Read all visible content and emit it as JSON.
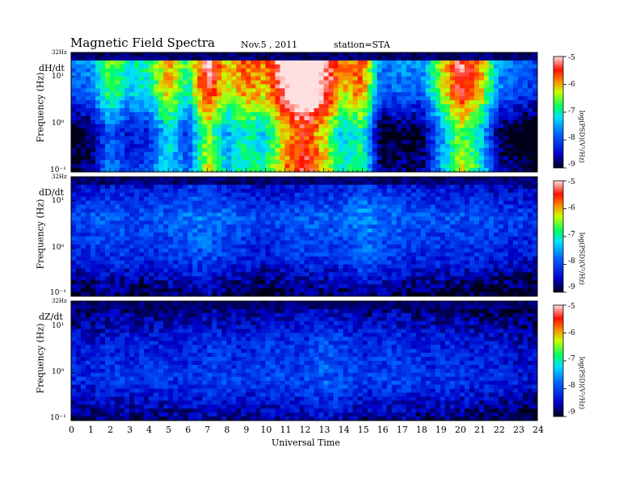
{
  "header": {
    "title": "Magnetic  Field  Spectra",
    "date": "Nov.5  , 2011",
    "station": "station=STA"
  },
  "chart_data": [
    {
      "type": "heatmap",
      "panel_label": "dH/dt",
      "ylabel": "Frequency  (Hz)",
      "y_scale": "log",
      "ylim": [
        0.1,
        32
      ],
      "y_tick_labels": [
        "32Hz",
        "10¹",
        "10⁰",
        "10⁻¹"
      ],
      "xlim": [
        0,
        24
      ],
      "colorbar_label": "log(PSD)(V²/Hz)",
      "colorbar_range": [
        -9,
        -5
      ],
      "colorbar_ticks": [
        "-5",
        "-6",
        "-7",
        "-8",
        "-9"
      ],
      "intensity_profile": [
        -8.6,
        -8.4,
        -7.3,
        -7.9,
        -7.7,
        -6.7,
        -7.6,
        -5.9,
        -7.0,
        -6.5,
        -6.7,
        -5.6,
        -5.0,
        -5.7,
        -6.8,
        -6.4,
        -8.6,
        -8.4,
        -8.5,
        -7.2,
        -6.0,
        -6.6,
        -8.3,
        -8.6,
        -8.8
      ],
      "y_profile": [
        -7.0,
        -7.3,
        -8.6,
        -8.3
      ]
    },
    {
      "type": "heatmap",
      "panel_label": "dD/dt",
      "ylabel": "Frequency  (Hz)",
      "y_scale": "log",
      "ylim": [
        0.1,
        32
      ],
      "y_tick_labels": [
        "32Hz",
        "10¹",
        "10⁰",
        "10⁻¹"
      ],
      "xlim": [
        0,
        24
      ],
      "colorbar_label": "log(PSD)(V²/Hz)",
      "colorbar_range": [
        -9,
        -5
      ],
      "colorbar_ticks": [
        "-5",
        "-6",
        "-7",
        "-8",
        "-9"
      ],
      "intensity_profile": [
        -8.4,
        -8.3,
        -8.2,
        -8.3,
        -8.3,
        -8.2,
        -8.1,
        -8.0,
        -8.2,
        -8.3,
        -8.4,
        -8.3,
        -8.2,
        -8.2,
        -8.2,
        -7.9,
        -8.1,
        -8.2,
        -8.3,
        -8.3,
        -8.3,
        -8.3,
        -8.4,
        -8.4,
        -8.5
      ],
      "y_profile": [
        -8.3,
        -7.6,
        -7.9,
        -8.7
      ]
    },
    {
      "type": "heatmap",
      "panel_label": "dZ/dt",
      "ylabel": "Frequency  (Hz)",
      "y_scale": "log",
      "ylim": [
        0.1,
        32
      ],
      "y_tick_labels": [
        "32Hz",
        "10¹",
        "10⁰",
        "10⁻¹"
      ],
      "xlim": [
        0,
        24
      ],
      "xlabel": "Universal Time",
      "x_ticks": [
        "0",
        "1",
        "2",
        "3",
        "4",
        "5",
        "6",
        "7",
        "8",
        "9",
        "10",
        "11",
        "12",
        "13",
        "14",
        "15",
        "16",
        "17",
        "18",
        "19",
        "20",
        "21",
        "22",
        "23",
        "24"
      ],
      "colorbar_label": "log(PSD)(V²/Hz)",
      "colorbar_range": [
        -9,
        -5
      ],
      "colorbar_ticks": [
        "-5",
        "-6",
        "-7",
        "-8",
        "-9"
      ],
      "intensity_profile": [
        -8.4,
        -8.4,
        -8.3,
        -8.3,
        -8.3,
        -8.3,
        -8.3,
        -8.2,
        -8.2,
        -8.3,
        -8.2,
        -8.2,
        -8.2,
        -8.0,
        -8.1,
        -8.3,
        -8.2,
        -8.2,
        -8.3,
        -8.3,
        -8.3,
        -8.4,
        -8.4,
        -8.5,
        -8.5
      ],
      "y_profile": [
        -8.6,
        -8.0,
        -7.8,
        -8.5
      ]
    }
  ]
}
